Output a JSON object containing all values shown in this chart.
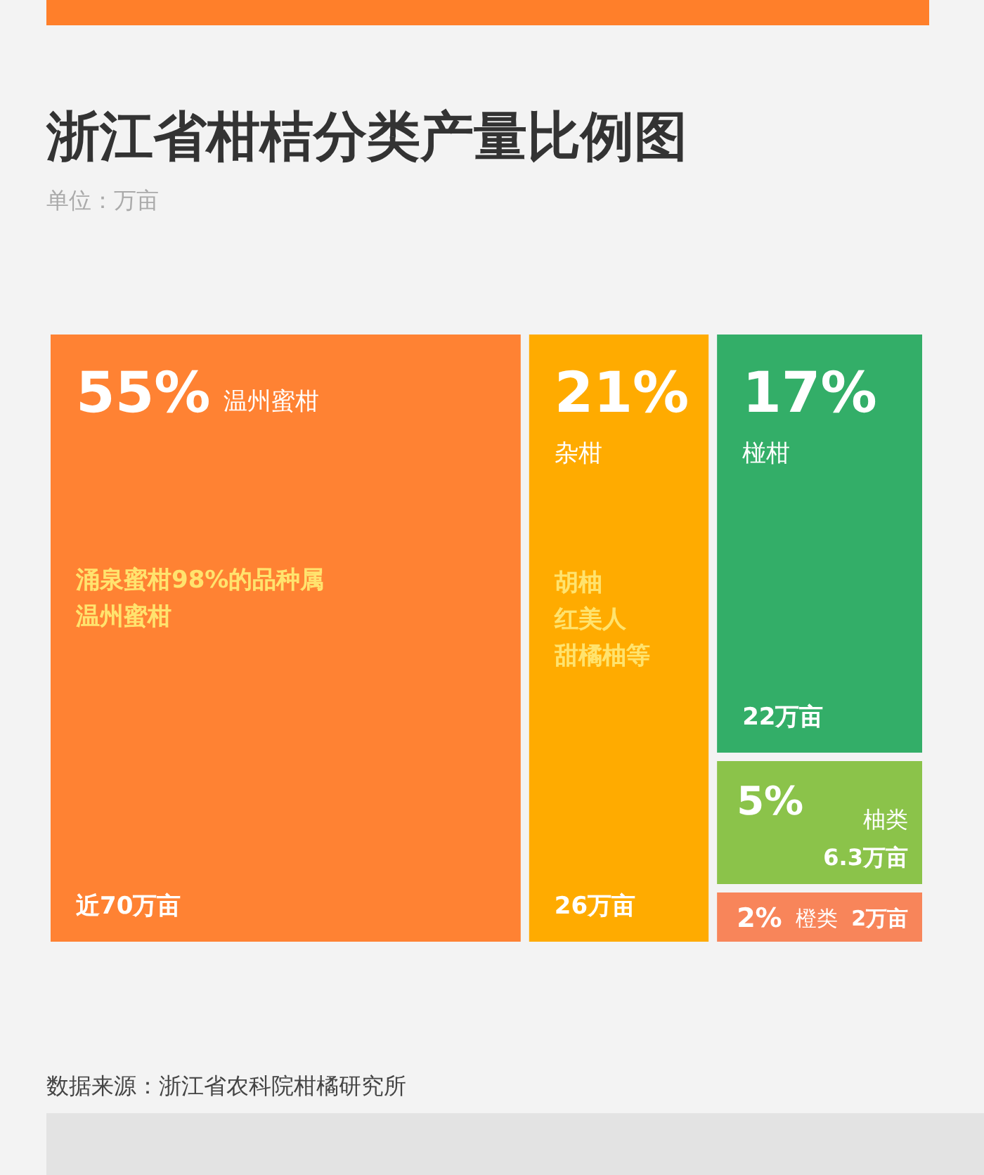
{
  "chart_data": {
    "type": "other",
    "title": "浙江省柑桔分类产量比例图",
    "subtitle": "单位：万亩",
    "categories": [
      "温州蜜柑",
      "杂柑",
      "椪柑",
      "柚类",
      "橙类"
    ],
    "values": [
      55,
      21,
      17,
      5,
      2
    ],
    "value_labels": [
      "55%",
      "21%",
      "17%",
      "5%",
      "2%"
    ],
    "colors": [
      "#ff8233",
      "#ffab00",
      "#33ae68",
      "#8bc34a",
      "#f8855a"
    ],
    "annotations": [
      {
        "text": "涌泉蜜柑98%的品种属温州蜜柑",
        "x": "温州蜜柑"
      },
      {
        "text": "近70万亩",
        "x": "温州蜜柑"
      },
      {
        "text": "胡柚",
        "x": "杂柑"
      },
      {
        "text": "红美人",
        "x": "杂柑"
      },
      {
        "text": "甜橘柚等",
        "x": "杂柑"
      },
      {
        "text": "26万亩",
        "x": "杂柑"
      },
      {
        "text": "22万亩",
        "x": "椪柑"
      },
      {
        "text": "6.3万亩",
        "x": "柚类"
      },
      {
        "text": "2万亩",
        "x": "橙类"
      },
      "数据来源：浙江省农科院柑橘研究所"
    ]
  }
}
